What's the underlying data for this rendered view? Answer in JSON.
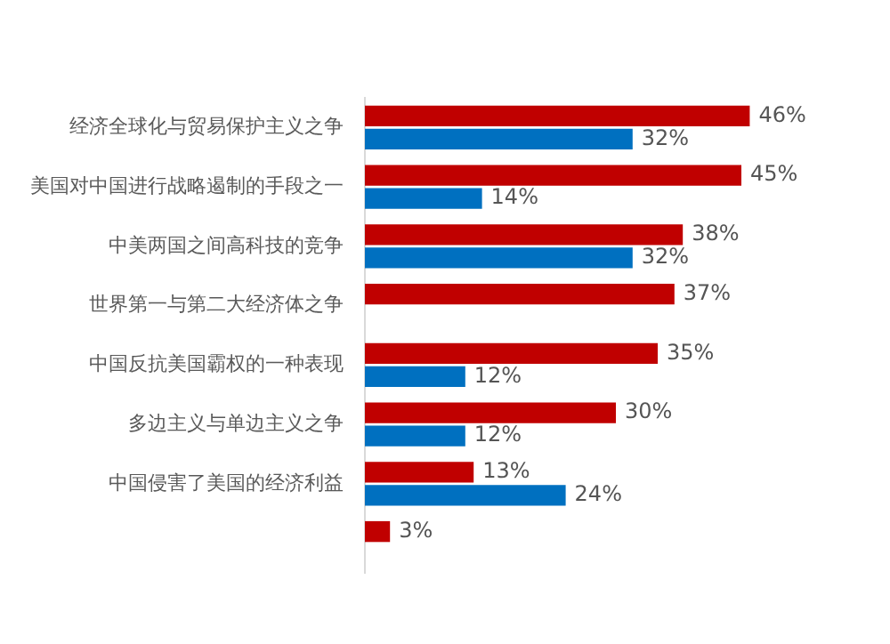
{
  "chart_data": {
    "type": "bar",
    "orientation": "horizontal",
    "categories": [
      "经济全球化与贸易保护主义之争",
      "美国对中国进行战略遏制的手段之一",
      "中美两国之间高科技的竞争",
      "世界第一与第二大经济体之争",
      "中国反抗美国霸权的一种表现",
      "多边主义与单边主义之争",
      "中国侵害了美国的经济利益",
      null
    ],
    "series": [
      {
        "color": "#c00000",
        "values": [
          46,
          45,
          38,
          37,
          35,
          30,
          13,
          3
        ],
        "value_labels": [
          "46%",
          "45%",
          "38%",
          "37%",
          "35%",
          "30%",
          "13%",
          "3%"
        ]
      },
      {
        "color": "#0070c0",
        "values": [
          32,
          14,
          32,
          null,
          12,
          12,
          24,
          null
        ],
        "value_labels": [
          "32%",
          "14%",
          "32%",
          null,
          "12%",
          "12%",
          "24%",
          null
        ]
      }
    ],
    "legend": false
  }
}
